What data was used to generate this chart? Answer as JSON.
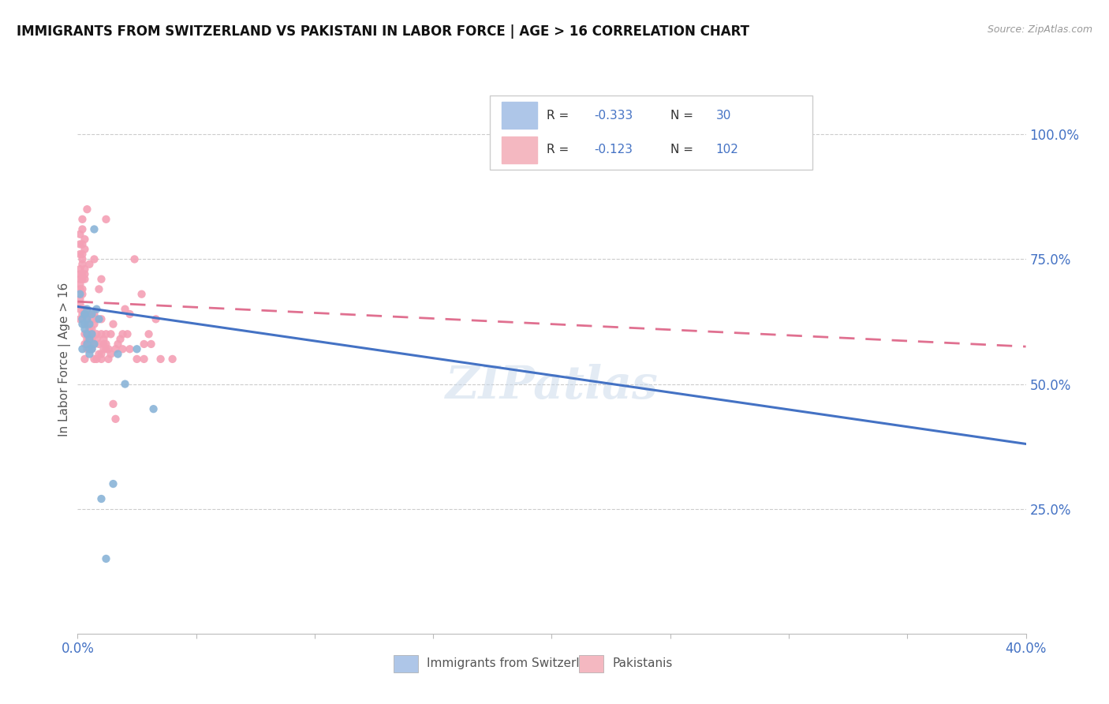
{
  "title": "IMMIGRANTS FROM SWITZERLAND VS PAKISTANI IN LABOR FORCE | AGE > 16 CORRELATION CHART",
  "source": "Source: ZipAtlas.com",
  "ylabel_label": "In Labor Force | Age > 16",
  "xmin": 0.0,
  "xmax": 0.4,
  "ymin": 0.0,
  "ymax": 1.1,
  "yticks": [
    0.25,
    0.5,
    0.75,
    1.0
  ],
  "ytick_labels": [
    "25.0%",
    "50.0%",
    "75.0%",
    "100.0%"
  ],
  "xtick_left_label": "0.0%",
  "xtick_right_label": "40.0%",
  "watermark": "ZIPatlas",
  "swiss_color": "#8ab4d8",
  "swiss_trend_color": "#4472c4",
  "pak_color": "#f4a0b5",
  "pak_trend_color": "#e07090",
  "legend_swiss_color": "#aec6e8",
  "legend_pak_color": "#f4b8c1",
  "swiss_R": "-0.333",
  "swiss_N": "30",
  "pak_R": "-0.123",
  "pak_N": "102",
  "swiss_points": [
    [
      0.001,
      0.68
    ],
    [
      0.002,
      0.62
    ],
    [
      0.002,
      0.57
    ],
    [
      0.002,
      0.63
    ],
    [
      0.003,
      0.64
    ],
    [
      0.003,
      0.61
    ],
    [
      0.003,
      0.62
    ],
    [
      0.003,
      0.64
    ],
    [
      0.004,
      0.63
    ],
    [
      0.004,
      0.58
    ],
    [
      0.004,
      0.6
    ],
    [
      0.004,
      0.65
    ],
    [
      0.005,
      0.62
    ],
    [
      0.005,
      0.59
    ],
    [
      0.005,
      0.57
    ],
    [
      0.005,
      0.56
    ],
    [
      0.006,
      0.6
    ],
    [
      0.006,
      0.57
    ],
    [
      0.006,
      0.64
    ],
    [
      0.007,
      0.58
    ],
    [
      0.007,
      0.81
    ],
    [
      0.008,
      0.65
    ],
    [
      0.009,
      0.63
    ],
    [
      0.01,
      0.27
    ],
    [
      0.012,
      0.15
    ],
    [
      0.015,
      0.3
    ],
    [
      0.017,
      0.56
    ],
    [
      0.02,
      0.5
    ],
    [
      0.025,
      0.57
    ],
    [
      0.032,
      0.45
    ]
  ],
  "pak_points": [
    [
      0.001,
      0.71
    ],
    [
      0.001,
      0.67
    ],
    [
      0.001,
      0.78
    ],
    [
      0.001,
      0.76
    ],
    [
      0.001,
      0.73
    ],
    [
      0.001,
      0.72
    ],
    [
      0.001,
      0.7
    ],
    [
      0.001,
      0.69
    ],
    [
      0.001,
      0.65
    ],
    [
      0.001,
      0.66
    ],
    [
      0.001,
      0.63
    ],
    [
      0.001,
      0.8
    ],
    [
      0.002,
      0.75
    ],
    [
      0.002,
      0.72
    ],
    [
      0.002,
      0.71
    ],
    [
      0.002,
      0.69
    ],
    [
      0.002,
      0.76
    ],
    [
      0.002,
      0.74
    ],
    [
      0.002,
      0.83
    ],
    [
      0.002,
      0.78
    ],
    [
      0.002,
      0.64
    ],
    [
      0.002,
      0.81
    ],
    [
      0.002,
      0.68
    ],
    [
      0.003,
      0.77
    ],
    [
      0.003,
      0.73
    ],
    [
      0.003,
      0.72
    ],
    [
      0.003,
      0.71
    ],
    [
      0.003,
      0.6
    ],
    [
      0.003,
      0.58
    ],
    [
      0.003,
      0.55
    ],
    [
      0.003,
      0.65
    ],
    [
      0.003,
      0.79
    ],
    [
      0.004,
      0.64
    ],
    [
      0.004,
      0.63
    ],
    [
      0.004,
      0.6
    ],
    [
      0.004,
      0.57
    ],
    [
      0.004,
      0.59
    ],
    [
      0.004,
      0.58
    ],
    [
      0.004,
      0.62
    ],
    [
      0.004,
      0.85
    ],
    [
      0.005,
      0.6
    ],
    [
      0.005,
      0.59
    ],
    [
      0.005,
      0.58
    ],
    [
      0.005,
      0.57
    ],
    [
      0.005,
      0.61
    ],
    [
      0.005,
      0.64
    ],
    [
      0.005,
      0.74
    ],
    [
      0.006,
      0.63
    ],
    [
      0.006,
      0.61
    ],
    [
      0.006,
      0.59
    ],
    [
      0.006,
      0.57
    ],
    [
      0.006,
      0.6
    ],
    [
      0.007,
      0.64
    ],
    [
      0.007,
      0.62
    ],
    [
      0.007,
      0.75
    ],
    [
      0.007,
      0.58
    ],
    [
      0.007,
      0.55
    ],
    [
      0.008,
      0.55
    ],
    [
      0.008,
      0.6
    ],
    [
      0.008,
      0.63
    ],
    [
      0.008,
      0.59
    ],
    [
      0.009,
      0.69
    ],
    [
      0.009,
      0.56
    ],
    [
      0.009,
      0.58
    ],
    [
      0.01,
      0.56
    ],
    [
      0.01,
      0.63
    ],
    [
      0.01,
      0.6
    ],
    [
      0.01,
      0.71
    ],
    [
      0.01,
      0.55
    ],
    [
      0.011,
      0.58
    ],
    [
      0.011,
      0.57
    ],
    [
      0.011,
      0.59
    ],
    [
      0.012,
      0.83
    ],
    [
      0.012,
      0.57
    ],
    [
      0.012,
      0.58
    ],
    [
      0.012,
      0.6
    ],
    [
      0.013,
      0.55
    ],
    [
      0.013,
      0.57
    ],
    [
      0.014,
      0.6
    ],
    [
      0.014,
      0.56
    ],
    [
      0.015,
      0.46
    ],
    [
      0.015,
      0.62
    ],
    [
      0.016,
      0.43
    ],
    [
      0.016,
      0.57
    ],
    [
      0.017,
      0.58
    ],
    [
      0.018,
      0.59
    ],
    [
      0.019,
      0.57
    ],
    [
      0.019,
      0.6
    ],
    [
      0.02,
      0.65
    ],
    [
      0.021,
      0.6
    ],
    [
      0.022,
      0.57
    ],
    [
      0.022,
      0.64
    ],
    [
      0.024,
      0.75
    ],
    [
      0.025,
      0.55
    ],
    [
      0.027,
      0.68
    ],
    [
      0.028,
      0.58
    ],
    [
      0.03,
      0.6
    ],
    [
      0.031,
      0.58
    ],
    [
      0.033,
      0.63
    ],
    [
      0.035,
      0.55
    ],
    [
      0.04,
      0.55
    ],
    [
      0.028,
      0.55
    ]
  ],
  "swiss_trend": [
    0.0,
    0.4,
    0.655,
    0.38
  ],
  "pak_trend": [
    0.0,
    0.4,
    0.665,
    0.575
  ]
}
